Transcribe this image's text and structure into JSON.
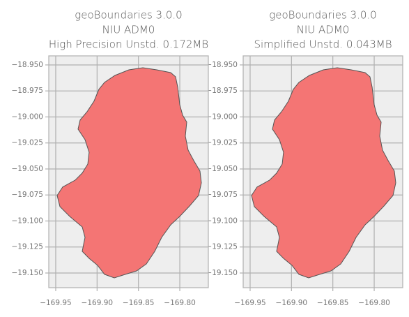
{
  "chart_data": [
    {
      "type": "polygon",
      "title": [
        "geoBoundaries 3.0.0",
        "NIU ADM0",
        "High Precision Unstd. 0.172MB"
      ],
      "color": "#f47574",
      "edge_color": "#555555",
      "grid": true,
      "xlim": [
        -169.9584,
        -169.7655
      ],
      "ylim": [
        -19.1641,
        -18.9413
      ],
      "xticks": [
        {
          "value": -169.95,
          "label": "−169.95"
        },
        {
          "value": -169.9,
          "label": "−169.90"
        },
        {
          "value": -169.85,
          "label": "−169.85"
        },
        {
          "value": -169.8,
          "label": "−169.80"
        }
      ],
      "yticks": [
        {
          "value": -18.95,
          "label": "−18.950"
        },
        {
          "value": -18.975,
          "label": "−18.975"
        },
        {
          "value": -19.0,
          "label": "−19.000"
        },
        {
          "value": -19.025,
          "label": "−19.025"
        },
        {
          "value": -19.05,
          "label": "−19.050"
        },
        {
          "value": -19.075,
          "label": "−19.075"
        },
        {
          "value": -19.1,
          "label": "−19.100"
        },
        {
          "value": -19.125,
          "label": "−19.125"
        },
        {
          "value": -19.15,
          "label": "−19.150"
        }
      ],
      "x": [
        -169.8447,
        -169.8278,
        -169.811,
        -169.8051,
        -169.8025,
        -169.8,
        -169.7966,
        -169.7916,
        -169.7933,
        -169.7899,
        -169.7832,
        -169.7756,
        -169.7739,
        -169.7773,
        -169.7882,
        -169.8,
        -169.811,
        -169.8219,
        -169.8303,
        -169.8405,
        -169.8522,
        -169.8657,
        -169.8792,
        -169.891,
        -169.8994,
        -169.9096,
        -169.918,
        -169.9146,
        -169.918,
        -169.9331,
        -169.9449,
        -169.9483,
        -169.9416,
        -169.9264,
        -169.918,
        -169.9112,
        -169.9096,
        -169.9146,
        -169.923,
        -169.9205,
        -169.9121,
        -169.9037,
        -169.8978,
        -169.891,
        -169.8784,
        -169.8615
      ],
      "y": [
        -18.9527,
        -18.9547,
        -18.9574,
        -18.9614,
        -18.9715,
        -18.9883,
        -18.9983,
        -19.005,
        -19.0185,
        -19.0319,
        -19.0419,
        -19.052,
        -19.0634,
        -19.0755,
        -19.0856,
        -19.0956,
        -19.1037,
        -19.1158,
        -19.1292,
        -19.1413,
        -19.148,
        -19.1513,
        -19.1547,
        -19.1513,
        -19.1426,
        -19.1359,
        -19.1292,
        -19.1158,
        -19.1057,
        -19.0956,
        -19.0862,
        -19.0755,
        -19.0674,
        -19.0607,
        -19.054,
        -19.0453,
        -19.0339,
        -19.0218,
        -19.0117,
        -19.003,
        -18.995,
        -18.9849,
        -18.9735,
        -18.9668,
        -18.9601,
        -18.9547
      ]
    },
    {
      "type": "polygon",
      "title": [
        "geoBoundaries 3.0.0",
        "NIU ADM0",
        "Simplified Unstd. 0.043MB"
      ],
      "color": "#f47574",
      "edge_color": "#555555",
      "grid": true,
      "xlim": [
        -169.9584,
        -169.7655
      ],
      "ylim": [
        -19.1641,
        -18.9413
      ],
      "xticks": [
        {
          "value": -169.95,
          "label": "−169.95"
        },
        {
          "value": -169.9,
          "label": "−169.90"
        },
        {
          "value": -169.85,
          "label": "−169.85"
        },
        {
          "value": -169.8,
          "label": "−169.80"
        }
      ],
      "yticks": [
        {
          "value": -18.95,
          "label": "−18.950"
        },
        {
          "value": -18.975,
          "label": "−18.975"
        },
        {
          "value": -19.0,
          "label": "−19.000"
        },
        {
          "value": -19.025,
          "label": "−19.025"
        },
        {
          "value": -19.05,
          "label": "−19.050"
        },
        {
          "value": -19.075,
          "label": "−19.075"
        },
        {
          "value": -19.1,
          "label": "−19.100"
        },
        {
          "value": -19.125,
          "label": "−19.125"
        },
        {
          "value": -19.15,
          "label": "−19.150"
        }
      ],
      "x": [
        -169.8447,
        -169.8278,
        -169.811,
        -169.8051,
        -169.8025,
        -169.8,
        -169.7966,
        -169.7916,
        -169.7933,
        -169.7899,
        -169.7832,
        -169.7756,
        -169.7739,
        -169.7773,
        -169.7882,
        -169.8,
        -169.811,
        -169.8219,
        -169.8303,
        -169.8405,
        -169.8522,
        -169.8657,
        -169.8792,
        -169.891,
        -169.8994,
        -169.9096,
        -169.918,
        -169.9146,
        -169.918,
        -169.9331,
        -169.9449,
        -169.9483,
        -169.9416,
        -169.9264,
        -169.918,
        -169.9112,
        -169.9096,
        -169.9146,
        -169.923,
        -169.9205,
        -169.9121,
        -169.9037,
        -169.8978,
        -169.891,
        -169.8784,
        -169.8615
      ],
      "y": [
        -18.9527,
        -18.9547,
        -18.9574,
        -18.9614,
        -18.9715,
        -18.9883,
        -18.9983,
        -19.005,
        -19.0185,
        -19.0319,
        -19.0419,
        -19.052,
        -19.0634,
        -19.0755,
        -19.0856,
        -19.0956,
        -19.1037,
        -19.1158,
        -19.1292,
        -19.1413,
        -19.148,
        -19.1513,
        -19.1547,
        -19.1513,
        -19.1426,
        -19.1359,
        -19.1292,
        -19.1158,
        -19.1057,
        -19.0956,
        -19.0862,
        -19.0755,
        -19.0674,
        -19.0607,
        -19.054,
        -19.0453,
        -19.0339,
        -19.0218,
        -19.0117,
        -19.003,
        -18.995,
        -18.9849,
        -18.9735,
        -18.9668,
        -18.9601,
        -18.9547
      ]
    }
  ]
}
